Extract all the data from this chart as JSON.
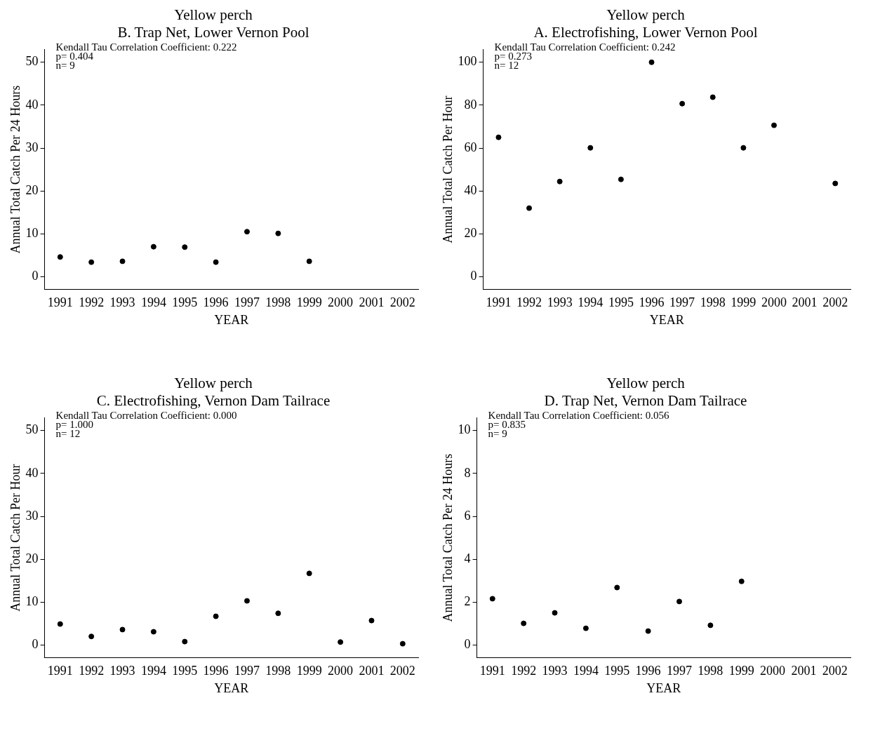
{
  "chart_data": [
    {
      "type": "scatter",
      "title": "Yellow perch",
      "subtitle": "B. Trap Net, Lower Vernon Pool",
      "xlabel": "YEAR",
      "ylabel": "Annual Total Catch Per 24 Hours",
      "annotations": [
        "Kendall Tau Correlation Coefficient: 0.222",
        "p= 0.404",
        "n= 9"
      ],
      "categories": [
        "1991",
        "1992",
        "1993",
        "1994",
        "1995",
        "1996",
        "1997",
        "1998",
        "1999",
        "2000",
        "2001",
        "2002"
      ],
      "values": [
        4.6,
        3.4,
        3.6,
        7.0,
        6.9,
        3.4,
        10.5,
        10.1,
        3.6,
        null,
        null,
        null
      ],
      "color": "#000000",
      "ylim": [
        -3,
        53
      ],
      "yticks": [
        0,
        10,
        20,
        30,
        40,
        50
      ],
      "grid": false,
      "legend": false,
      "marker": "circle"
    },
    {
      "type": "scatter",
      "title": "Yellow perch",
      "subtitle": "A. Electrofishing, Lower Vernon Pool",
      "xlabel": "YEAR",
      "ylabel": "Annual Total Catch Per Hour",
      "annotations": [
        "Kendall Tau Correlation Coefficient: 0.242",
        "p= 0.273",
        "n= 12"
      ],
      "categories": [
        "1991",
        "1992",
        "1993",
        "1994",
        "1995",
        "1996",
        "1997",
        "1998",
        "1999",
        "2000",
        "2001",
        "2002"
      ],
      "values": [
        65,
        32,
        44.4,
        60.1,
        45.4,
        100,
        80.7,
        83.7,
        60.1,
        70.6,
        null,
        43.5
      ],
      "color": "#000000",
      "ylim": [
        -6,
        106
      ],
      "yticks": [
        0,
        20,
        40,
        60,
        80,
        100
      ],
      "grid": false,
      "legend": false,
      "marker": "circle"
    },
    {
      "type": "scatter",
      "title": "Yellow perch",
      "subtitle": "C. Electrofishing, Vernon Dam Tailrace",
      "xlabel": "YEAR",
      "ylabel": "Annual Total Catch Per Hour",
      "annotations": [
        "Kendall Tau Correlation Coefficient: 0.000",
        "p= 1.000",
        "n= 12"
      ],
      "categories": [
        "1991",
        "1992",
        "1993",
        "1994",
        "1995",
        "1996",
        "1997",
        "1998",
        "1999",
        "2000",
        "2001",
        "2002"
      ],
      "values": [
        4.9,
        2.0,
        3.6,
        3.1,
        0.8,
        6.7,
        10.3,
        7.4,
        16.7,
        0.7,
        5.7,
        0.3
      ],
      "color": "#000000",
      "ylim": [
        -3,
        53
      ],
      "yticks": [
        0,
        10,
        20,
        30,
        40,
        50
      ],
      "grid": false,
      "legend": false,
      "marker": "circle"
    },
    {
      "type": "scatter",
      "title": "Yellow perch",
      "subtitle": "D. Trap Net, Vernon Dam Tailrace",
      "xlabel": "YEAR",
      "ylabel": "Annual Total Catch Per 24 Hours",
      "annotations": [
        "Kendall Tau Correlation Coefficient: 0.056",
        "p= 0.835",
        "n= 9"
      ],
      "categories": [
        "1991",
        "1992",
        "1993",
        "1994",
        "1995",
        "1996",
        "1997",
        "1998",
        "1999",
        "2000",
        "2001",
        "2002"
      ],
      "values": [
        2.16,
        1.01,
        1.5,
        0.78,
        2.68,
        0.65,
        2.03,
        0.92,
        2.97,
        null,
        null,
        null
      ],
      "color": "#000000",
      "ylim": [
        -0.6,
        10.6
      ],
      "yticks": [
        0,
        2,
        4,
        6,
        8,
        10
      ],
      "grid": false,
      "legend": false,
      "marker": "circle"
    }
  ]
}
